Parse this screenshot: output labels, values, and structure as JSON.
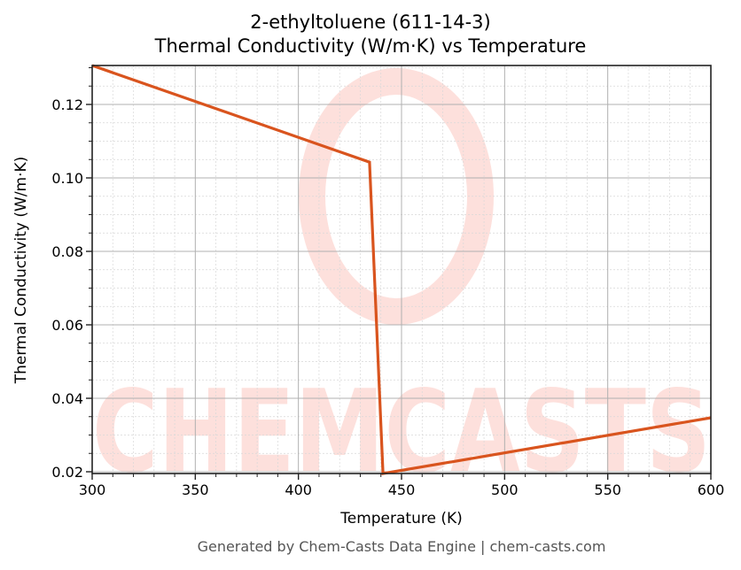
{
  "header": {
    "title_line1": "2-ethyltoluene (611-14-3)",
    "title_line2": "Thermal Conductivity (W/m·K) vs Temperature"
  },
  "footer": {
    "text": "Generated by Chem-Casts Data Engine | chem-casts.com"
  },
  "watermark": {
    "text": "CHEMCASTS",
    "color": "#fde0dc"
  },
  "colors": {
    "line": "#d9541e",
    "major_grid": "#b0b0b0",
    "minor_grid": "#d8d8d8",
    "axis": "#222222"
  },
  "chart_data": {
    "type": "line",
    "title": "2-ethyltoluene (611-14-3)\nThermal Conductivity (W/m·K) vs Temperature",
    "xlabel": "Temperature (K)",
    "ylabel": "Thermal Conductivity (W/m·K)",
    "xlim": [
      300,
      600
    ],
    "ylim": [
      0.019,
      0.131
    ],
    "xticks": [
      300,
      350,
      400,
      450,
      500,
      550,
      600
    ],
    "xtick_labels": [
      "300",
      "350",
      "400",
      "450",
      "500",
      "550",
      "600"
    ],
    "yticks": [
      0.02,
      0.04,
      0.06,
      0.08,
      0.1,
      0.12
    ],
    "ytick_labels": [
      "0.02",
      "0.04",
      "0.06",
      "0.08",
      "0.10",
      "0.12"
    ],
    "grid": true,
    "minor_grid": true,
    "legend": null,
    "series": [
      {
        "name": "Thermal Conductivity",
        "x": [
          300,
          434.5,
          441,
          600
        ],
        "y": [
          0.1306,
          0.1043,
          0.0195,
          0.0347
        ]
      }
    ]
  }
}
